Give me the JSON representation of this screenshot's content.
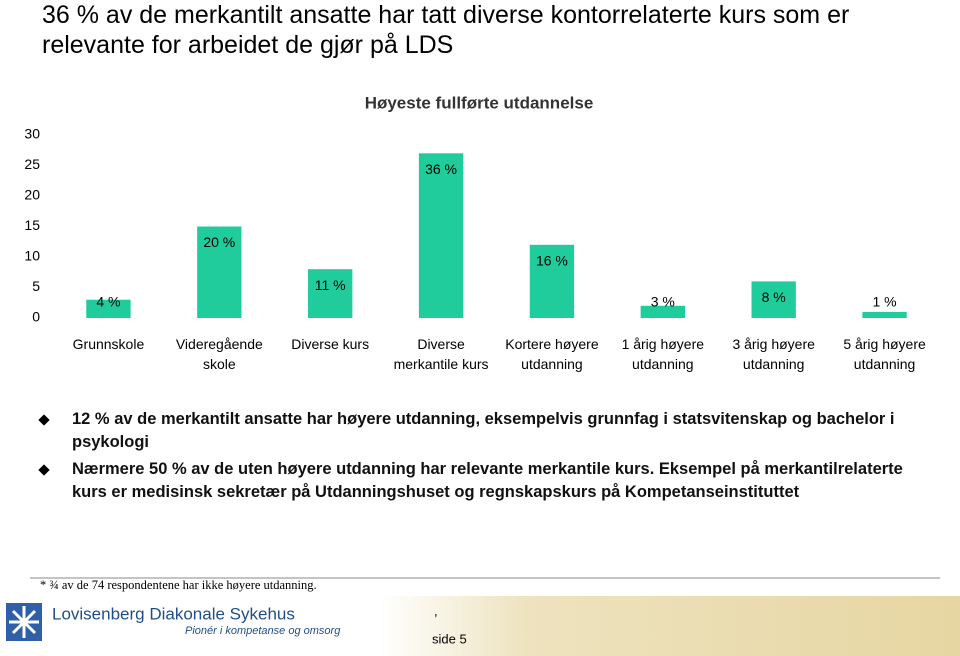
{
  "slide": {
    "title": "36 % av de merkantilt ansatte har tatt diverse kontorrelaterte kurs som er relevante for arbeidet de gjør på LDS",
    "bullets": [
      "12 % av de merkantilt ansatte har høyere utdanning, eksempelvis grunnfag i statsvitenskap og bachelor i psykologi",
      "Nærmere 50 % av de uten høyere utdanning har relevante merkantile kurs. Eksempel på merkantilrelaterte kurs er medisinsk sekretær på Utdanningshuset og regnskapskurs på Kompetanseinstituttet"
    ],
    "footnote": "* ¾ av de 74 respondentene har ikke høyere utdanning.",
    "footer": {
      "organization": "Lovisenberg Diakonale Sykehus",
      "tagline": "Pionér i kompetanse og omsorg",
      "page_mark": ",",
      "page": "side 5"
    }
  },
  "chart_data": {
    "type": "bar",
    "title": "Høyeste fullførte utdannelse",
    "categories": [
      "Grunnskole",
      "Videregående\nskole",
      "Diverse kurs",
      "Diverse\nmerkantile kurs",
      "Kortere høyere\nutdanning",
      "1 årig høyere\nutdanning",
      "3 årig høyere\nutdanning",
      "5 årig høyere\nutdanning"
    ],
    "values": [
      3,
      15,
      8,
      27,
      12,
      2,
      6,
      1
    ],
    "value_labels": [
      "4 %",
      "20 %",
      "11 %",
      "36 %",
      "16 %",
      "3 %",
      "8 %",
      "1 %"
    ],
    "color": "#21cc9c",
    "ylim": [
      0,
      30
    ],
    "yticks": [
      0,
      5,
      10,
      15,
      20,
      25,
      30
    ],
    "grid": false
  }
}
